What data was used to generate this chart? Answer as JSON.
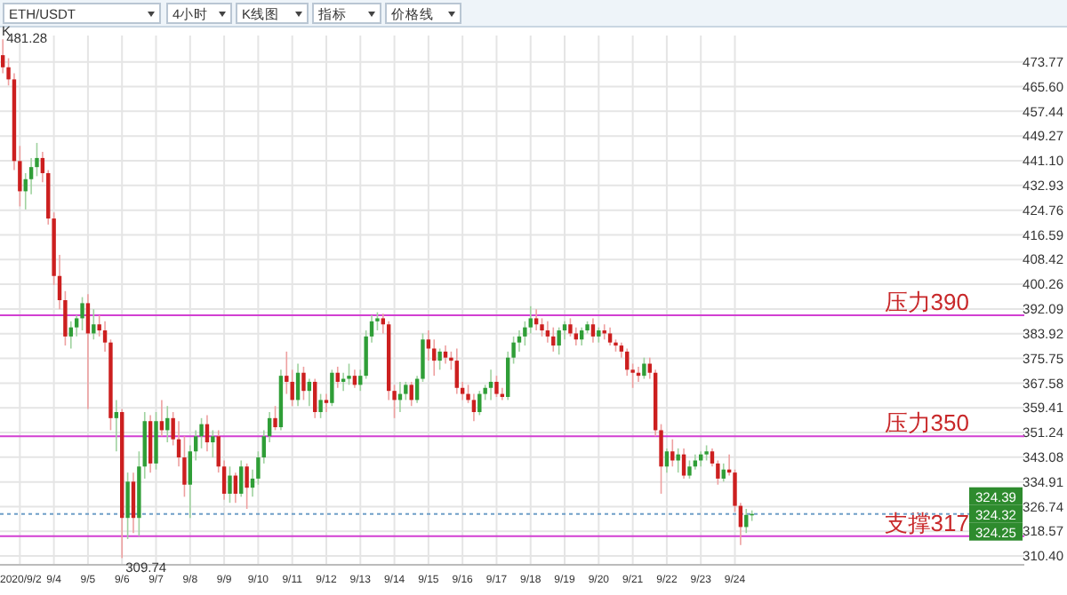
{
  "chart_data": {
    "type": "candlestick",
    "title": "ETH/USDT",
    "x": [
      "2020-09-02T12:00",
      "2020-09-02T16:00",
      "2020-09-02T20:00",
      "2020-09-03T00:00",
      "2020-09-03T04:00",
      "2020-09-03T08:00",
      "2020-09-03T12:00",
      "2020-09-03T16:00",
      "2020-09-03T20:00",
      "2020-09-04T00:00",
      "2020-09-04T04:00",
      "2020-09-04T08:00",
      "2020-09-04T12:00",
      "2020-09-04T16:00",
      "2020-09-04T20:00",
      "2020-09-05T00:00",
      "2020-09-05T04:00",
      "2020-09-05T08:00",
      "2020-09-05T12:00",
      "2020-09-05T16:00",
      "2020-09-05T20:00",
      "2020-09-06T00:00",
      "2020-09-06T04:00",
      "2020-09-06T08:00",
      "2020-09-06T12:00",
      "2020-09-06T16:00",
      "2020-09-06T20:00",
      "2020-09-07T00:00",
      "2020-09-07T04:00",
      "2020-09-07T08:00",
      "2020-09-07T12:00",
      "2020-09-07T16:00",
      "2020-09-07T20:00",
      "2020-09-08T00:00",
      "2020-09-08T04:00",
      "2020-09-08T08:00",
      "2020-09-08T12:00",
      "2020-09-08T16:00",
      "2020-09-08T20:00",
      "2020-09-09T00:00",
      "2020-09-09T04:00",
      "2020-09-09T08:00",
      "2020-09-09T12:00",
      "2020-09-09T16:00",
      "2020-09-09T20:00",
      "2020-09-10T00:00",
      "2020-09-10T04:00",
      "2020-09-10T08:00",
      "2020-09-10T12:00",
      "2020-09-10T16:00",
      "2020-09-10T20:00",
      "2020-09-11T00:00",
      "2020-09-11T04:00",
      "2020-09-11T08:00",
      "2020-09-11T12:00",
      "2020-09-11T16:00",
      "2020-09-11T20:00",
      "2020-09-12T00:00",
      "2020-09-12T04:00",
      "2020-09-12T08:00",
      "2020-09-12T12:00",
      "2020-09-12T16:00",
      "2020-09-12T20:00",
      "2020-09-13T00:00",
      "2020-09-13T04:00",
      "2020-09-13T08:00",
      "2020-09-13T12:00",
      "2020-09-13T16:00",
      "2020-09-13T20:00",
      "2020-09-14T00:00",
      "2020-09-14T04:00",
      "2020-09-14T08:00",
      "2020-09-14T12:00",
      "2020-09-14T16:00",
      "2020-09-14T20:00",
      "2020-09-15T00:00",
      "2020-09-15T04:00",
      "2020-09-15T08:00",
      "2020-09-15T12:00",
      "2020-09-15T16:00",
      "2020-09-15T20:00",
      "2020-09-16T00:00",
      "2020-09-16T04:00",
      "2020-09-16T08:00",
      "2020-09-16T12:00",
      "2020-09-16T16:00",
      "2020-09-16T20:00",
      "2020-09-17T00:00",
      "2020-09-17T04:00",
      "2020-09-17T08:00",
      "2020-09-17T12:00",
      "2020-09-17T16:00",
      "2020-09-17T20:00",
      "2020-09-18T00:00",
      "2020-09-18T04:00",
      "2020-09-18T08:00",
      "2020-09-18T12:00",
      "2020-09-18T16:00",
      "2020-09-18T20:00",
      "2020-09-19T00:00",
      "2020-09-19T04:00",
      "2020-09-19T08:00",
      "2020-09-19T12:00",
      "2020-09-19T16:00",
      "2020-09-19T20:00",
      "2020-09-20T00:00",
      "2020-09-20T04:00",
      "2020-09-20T08:00",
      "2020-09-20T12:00",
      "2020-09-20T16:00",
      "2020-09-20T20:00",
      "2020-09-21T00:00",
      "2020-09-21T04:00",
      "2020-09-21T08:00",
      "2020-09-21T12:00",
      "2020-09-21T16:00",
      "2020-09-21T20:00",
      "2020-09-22T00:00",
      "2020-09-22T04:00",
      "2020-09-22T08:00",
      "2020-09-22T12:00",
      "2020-09-22T16:00",
      "2020-09-22T20:00",
      "2020-09-23T00:00",
      "2020-09-23T04:00",
      "2020-09-23T08:00",
      "2020-09-23T12:00",
      "2020-09-23T16:00",
      "2020-09-23T20:00",
      "2020-09-24T00:00",
      "2020-09-24T04:00",
      "2020-09-24T08:00",
      "2020-09-24T12:00"
    ],
    "ohlc": [
      [
        476,
        481.28,
        470,
        472
      ],
      [
        472,
        475,
        466,
        468
      ],
      [
        468,
        470,
        438,
        441
      ],
      [
        441,
        446,
        426,
        431
      ],
      [
        431,
        437,
        425,
        435
      ],
      [
        435,
        442,
        430,
        439
      ],
      [
        439,
        447,
        436,
        442
      ],
      [
        442,
        444,
        434,
        437
      ],
      [
        437,
        438,
        420,
        422
      ],
      [
        422,
        424,
        400,
        403
      ],
      [
        403,
        410,
        392,
        395
      ],
      [
        395,
        398,
        380,
        383
      ],
      [
        383,
        388,
        379,
        386
      ],
      [
        386,
        390,
        383,
        389
      ],
      [
        389,
        396,
        385,
        394
      ],
      [
        394,
        397,
        359,
        384
      ],
      [
        384,
        392,
        382,
        387
      ],
      [
        387,
        390,
        383,
        385
      ],
      [
        385,
        388,
        378,
        381
      ],
      [
        381,
        382,
        352,
        356
      ],
      [
        356,
        362,
        345,
        358
      ],
      [
        358,
        359,
        309.74,
        323
      ],
      [
        323,
        338,
        316,
        335
      ],
      [
        335,
        338,
        318,
        323
      ],
      [
        323,
        345,
        317,
        340
      ],
      [
        340,
        358,
        336,
        355
      ],
      [
        355,
        357,
        338,
        341
      ],
      [
        341,
        358,
        339,
        355
      ],
      [
        355,
        362,
        350,
        352
      ],
      [
        352,
        360,
        348,
        356
      ],
      [
        356,
        358,
        347,
        349
      ],
      [
        349,
        355,
        340,
        343
      ],
      [
        343,
        350,
        330,
        334
      ],
      [
        334,
        347,
        323,
        345
      ],
      [
        345,
        352,
        342,
        350
      ],
      [
        350,
        356,
        346,
        354
      ],
      [
        354,
        357,
        345,
        348
      ],
      [
        348,
        352,
        343,
        350
      ],
      [
        350,
        352,
        338,
        340
      ],
      [
        340,
        342,
        329,
        331
      ],
      [
        331,
        340,
        328,
        337
      ],
      [
        337,
        338,
        328,
        331
      ],
      [
        331,
        342,
        330,
        340
      ],
      [
        340,
        341,
        326,
        333
      ],
      [
        333,
        339,
        330,
        336
      ],
      [
        336,
        345,
        334,
        343
      ],
      [
        343,
        352,
        341,
        350
      ],
      [
        350,
        358,
        348,
        356
      ],
      [
        356,
        360,
        352,
        353
      ],
      [
        353,
        372,
        352,
        370
      ],
      [
        370,
        378,
        364,
        368
      ],
      [
        368,
        372,
        360,
        362
      ],
      [
        362,
        374,
        360,
        371
      ],
      [
        371,
        373,
        362,
        365
      ],
      [
        365,
        369,
        360,
        368
      ],
      [
        368,
        369,
        356,
        358
      ],
      [
        358,
        364,
        356,
        362
      ],
      [
        362,
        364,
        358,
        361
      ],
      [
        361,
        372,
        360,
        371
      ],
      [
        371,
        373,
        366,
        368
      ],
      [
        368,
        371,
        365,
        369
      ],
      [
        369,
        374,
        367,
        370
      ],
      [
        370,
        372,
        366,
        367
      ],
      [
        367,
        372,
        365,
        370
      ],
      [
        370,
        385,
        369,
        383
      ],
      [
        383,
        390,
        381,
        388
      ],
      [
        388,
        391,
        385,
        389
      ],
      [
        389,
        390.5,
        384,
        387
      ],
      [
        387,
        388,
        362,
        365
      ],
      [
        365,
        367,
        356,
        362
      ],
      [
        362,
        368,
        358,
        364
      ],
      [
        364,
        368,
        362,
        367
      ],
      [
        367,
        368,
        360,
        362
      ],
      [
        362,
        370,
        361,
        369
      ],
      [
        369,
        384,
        368,
        382
      ],
      [
        382,
        385,
        375,
        379
      ],
      [
        379,
        382,
        370,
        375
      ],
      [
        375,
        379,
        372,
        378
      ],
      [
        378,
        380,
        374,
        376
      ],
      [
        376,
        378,
        372,
        375
      ],
      [
        375,
        379,
        364,
        366
      ],
      [
        366,
        368,
        362,
        364
      ],
      [
        364,
        367,
        361,
        362
      ],
      [
        362,
        364,
        355,
        358
      ],
      [
        358,
        365,
        357,
        364
      ],
      [
        364,
        367,
        362,
        366
      ],
      [
        366,
        372,
        362,
        368
      ],
      [
        368,
        370,
        363,
        364
      ],
      [
        364,
        366,
        362,
        363
      ],
      [
        363,
        378,
        362,
        376
      ],
      [
        376,
        383,
        374,
        381
      ],
      [
        381,
        385,
        378,
        383
      ],
      [
        383,
        388,
        380,
        386
      ],
      [
        386,
        393,
        384,
        389
      ],
      [
        389,
        392,
        385,
        387
      ],
      [
        387,
        389,
        383,
        385
      ],
      [
        385,
        388,
        381,
        383
      ],
      [
        383,
        386,
        378,
        380
      ],
      [
        380,
        386,
        377,
        385
      ],
      [
        385,
        388,
        382,
        387
      ],
      [
        387,
        389,
        383,
        384
      ],
      [
        384,
        386,
        380,
        382
      ],
      [
        382,
        386,
        380,
        385
      ],
      [
        385,
        388,
        384,
        387
      ],
      [
        387,
        389,
        381,
        383
      ],
      [
        383,
        386,
        381,
        385
      ],
      [
        385,
        387,
        382,
        384
      ],
      [
        384,
        386,
        380,
        381
      ],
      [
        381,
        382,
        378,
        380
      ],
      [
        380,
        381,
        376,
        378
      ],
      [
        378,
        379,
        370,
        372
      ],
      [
        372,
        374,
        366,
        371
      ],
      [
        371,
        373,
        368,
        370
      ],
      [
        370,
        376,
        369,
        374
      ],
      [
        374,
        376,
        369,
        371
      ],
      [
        371,
        372,
        350,
        352
      ],
      [
        352,
        354,
        331,
        340
      ],
      [
        340,
        346,
        338,
        345
      ],
      [
        345,
        349,
        340,
        342
      ],
      [
        342,
        346,
        338,
        344
      ],
      [
        344,
        346,
        336,
        337
      ],
      [
        337,
        342,
        336,
        340
      ],
      [
        340,
        344,
        339,
        342
      ],
      [
        342,
        345,
        340,
        344
      ],
      [
        344,
        347,
        342,
        345
      ],
      [
        345,
        346,
        340,
        341
      ],
      [
        341,
        342,
        334,
        336
      ],
      [
        336,
        341,
        335,
        339
      ],
      [
        339,
        344,
        337,
        338
      ],
      [
        338,
        339,
        325,
        327
      ],
      [
        327,
        328,
        314,
        320
      ],
      [
        320,
        326,
        318,
        324
      ],
      [
        324,
        325.5,
        322,
        324.32
      ]
    ],
    "xlim": [
      "2020-09-02T10:00",
      "2020-10-02T12:00"
    ],
    "xticks": [
      {
        "value": "2020-09-03T00:00",
        "label": null
      },
      {
        "value": "2020-09-04T00:00",
        "label": "9/4"
      },
      {
        "value": "2020-09-05T00:00",
        "label": "9/5"
      },
      {
        "value": "2020-09-06T00:00",
        "label": "9/6"
      },
      {
        "value": "2020-09-07T00:00",
        "label": "9/7"
      },
      {
        "value": "2020-09-08T00:00",
        "label": "9/8"
      },
      {
        "value": "2020-09-09T00:00",
        "label": "9/9"
      },
      {
        "value": "2020-09-10T00:00",
        "label": "9/10"
      },
      {
        "value": "2020-09-11T00:00",
        "label": "9/11"
      },
      {
        "value": "2020-09-12T00:00",
        "label": "9/12"
      },
      {
        "value": "2020-09-13T00:00",
        "label": "9/13"
      },
      {
        "value": "2020-09-14T00:00",
        "label": "9/14"
      },
      {
        "value": "2020-09-15T00:00",
        "label": "9/15"
      },
      {
        "value": "2020-09-16T00:00",
        "label": "9/16"
      },
      {
        "value": "2020-09-17T00:00",
        "label": "9/17"
      },
      {
        "value": "2020-09-18T00:00",
        "label": "9/18"
      },
      {
        "value": "2020-09-19T00:00",
        "label": "9/19"
      },
      {
        "value": "2020-09-20T00:00",
        "label": "9/20"
      },
      {
        "value": "2020-09-21T00:00",
        "label": "9/21"
      },
      {
        "value": "2020-09-22T00:00",
        "label": "9/22"
      },
      {
        "value": "2020-09-23T00:00",
        "label": "9/23"
      },
      {
        "value": "2020-09-24T00:00",
        "label": "9/24"
      }
    ],
    "ylim": [
      307.5,
      482.5
    ],
    "yticks": [
      473.77,
      {
        "value": 465.6,
        "label": "465.60"
      },
      457.44,
      449.27,
      {
        "value": 441.1,
        "label": "441.10"
      },
      432.93,
      424.76,
      416.59,
      408.42,
      400.26,
      392.09,
      383.92,
      375.75,
      367.58,
      359.41,
      351.24,
      343.08,
      334.91,
      326.74,
      318.57,
      {
        "value": 310.4,
        "label": "310.40"
      }
    ],
    "grid": true,
    "ref_lines": [
      {
        "axis": "y",
        "value": 390,
        "label": "压力390",
        "color": "#d23fd2"
      },
      {
        "axis": "y",
        "value": 350,
        "label": "压力350",
        "color": "#d23fd2"
      },
      {
        "axis": "y",
        "value": 317,
        "label": "支撑317",
        "color": "#d23fd2"
      },
      {
        "axis": "y",
        "value": 324.32,
        "label": "324.32",
        "color": "#6f9fc8",
        "line_style": "dotted"
      }
    ],
    "annotations": [
      "4小时",
      "K线图",
      "指标",
      "价格线",
      "K",
      {
        "text": "481.28",
        "x": "2020-09-02T12:00",
        "y": 481.28
      },
      {
        "text": "309.74",
        "x": "2020-09-06T00:00",
        "y": 309.74
      },
      "324.39",
      "324.25",
      "2020/9/2"
    ]
  }
}
